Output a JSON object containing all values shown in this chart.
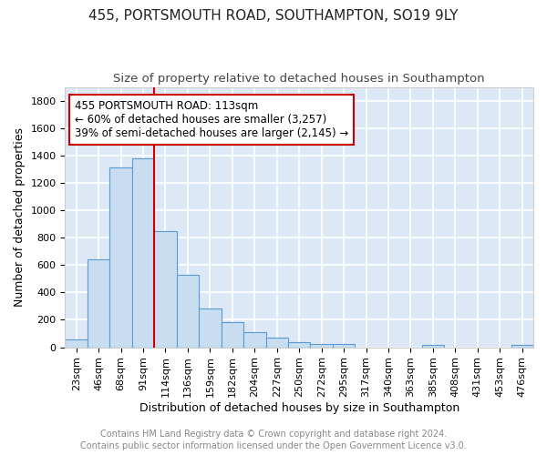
{
  "title_line1": "455, PORTSMOUTH ROAD, SOUTHAMPTON, SO19 9LY",
  "title_line2": "Size of property relative to detached houses in Southampton",
  "xlabel": "Distribution of detached houses by size in Southampton",
  "ylabel": "Number of detached properties",
  "bar_edge_color": "#5b9bd5",
  "bar_face_color": "#c9ddf0",
  "background_color": "#dce8f5",
  "grid_color": "#ffffff",
  "fig_background": "#ffffff",
  "bin_labels": [
    "23sqm",
    "46sqm",
    "68sqm",
    "91sqm",
    "114sqm",
    "136sqm",
    "159sqm",
    "182sqm",
    "204sqm",
    "227sqm",
    "250sqm",
    "272sqm",
    "295sqm",
    "317sqm",
    "340sqm",
    "363sqm",
    "385sqm",
    "408sqm",
    "431sqm",
    "453sqm",
    "476sqm"
  ],
  "bar_heights": [
    55,
    640,
    1310,
    1380,
    845,
    530,
    280,
    185,
    110,
    70,
    35,
    25,
    25,
    0,
    0,
    0,
    15,
    0,
    0,
    0,
    15
  ],
  "red_line_x": 4,
  "annotation_text": "455 PORTSMOUTH ROAD: 113sqm\n← 60% of detached houses are smaller (3,257)\n39% of semi-detached houses are larger (2,145) →",
  "annotation_box_color": "#ffffff",
  "annotation_border_color": "#cc0000",
  "ylim": [
    0,
    1900
  ],
  "yticks": [
    0,
    200,
    400,
    600,
    800,
    1000,
    1200,
    1400,
    1600,
    1800
  ],
  "footer_text": "Contains HM Land Registry data © Crown copyright and database right 2024.\nContains public sector information licensed under the Open Government Licence v3.0.",
  "title_fontsize": 11,
  "subtitle_fontsize": 9.5,
  "label_fontsize": 9,
  "tick_fontsize": 8,
  "annotation_fontsize": 8.5,
  "footer_fontsize": 7
}
